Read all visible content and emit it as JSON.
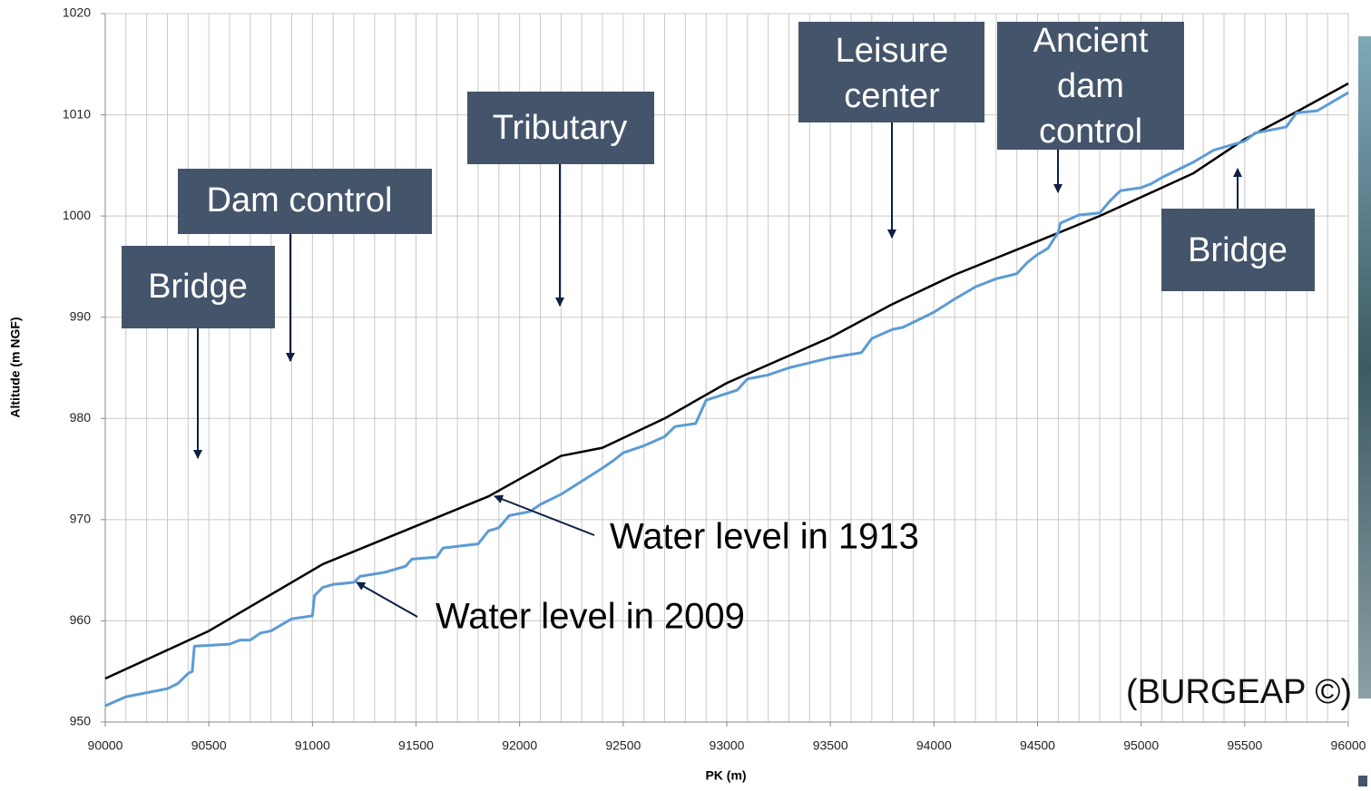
{
  "chart_data": {
    "type": "line",
    "xlabel": "PK (m)",
    "ylabel": "Altitude (m NGF)",
    "xlim": [
      90000,
      96000
    ],
    "ylim": [
      950,
      1020
    ],
    "xticks": [
      90000,
      90500,
      91000,
      91500,
      92000,
      92500,
      93000,
      93500,
      94000,
      94500,
      95000,
      95500,
      96000
    ],
    "yticks": [
      950,
      960,
      970,
      980,
      990,
      1000,
      1010,
      1020
    ],
    "grid": true,
    "series": [
      {
        "name": "Water level in 1913",
        "color": "#000000",
        "x": [
          90000,
          90500,
          91050,
          91850,
          92200,
          92400,
          92700,
          93000,
          93500,
          93800,
          94100,
          94500,
          94800,
          95250,
          95500,
          95750,
          96000
        ],
        "values": [
          954.3,
          959,
          965.6,
          972.3,
          976.3,
          977.1,
          980,
          983.5,
          988,
          991.3,
          994.2,
          997.5,
          1000,
          1004.2,
          1007.6,
          1010.3,
          1013.1
        ]
      },
      {
        "name": "Water level in 2009",
        "color": "#5b9bd5",
        "x": [
          90000,
          90100,
          90300,
          90350,
          90400,
          90420,
          90430,
          90600,
          90650,
          90700,
          90750,
          90800,
          90900,
          91000,
          91010,
          91050,
          91100,
          91200,
          91230,
          91350,
          91450,
          91480,
          91600,
          91630,
          91800,
          91850,
          91900,
          91950,
          92050,
          92100,
          92200,
          92300,
          92400,
          92450,
          92500,
          92600,
          92700,
          92750,
          92850,
          92900,
          93050,
          93100,
          93200,
          93300,
          93400,
          93500,
          93650,
          93700,
          93800,
          93850,
          94000,
          94100,
          94200,
          94300,
          94400,
          94450,
          94500,
          94550,
          94600,
          94610,
          94700,
          94800,
          94850,
          94900,
          95000,
          95050,
          95100,
          95250,
          95350,
          95500,
          95550,
          95700,
          95750,
          95850,
          96000
        ],
        "values": [
          951.6,
          952.5,
          953.3,
          953.8,
          954.8,
          955,
          957.5,
          957.7,
          958.1,
          958.1,
          958.8,
          959,
          960.2,
          960.5,
          962.5,
          963.3,
          963.6,
          963.8,
          964.4,
          964.8,
          965.4,
          966.1,
          966.3,
          967.2,
          967.6,
          968.9,
          969.2,
          970.4,
          970.8,
          971.5,
          972.5,
          973.8,
          975.1,
          975.8,
          976.6,
          977.3,
          978.2,
          979.2,
          979.5,
          981.8,
          982.8,
          983.9,
          984.3,
          985,
          985.5,
          986,
          986.5,
          987.9,
          988.8,
          989,
          990.5,
          991.8,
          993,
          993.8,
          994.3,
          995.4,
          996.2,
          996.8,
          998.4,
          999.3,
          1000.1,
          1000.3,
          1001.5,
          1002.5,
          1002.8,
          1003.2,
          1003.8,
          1005.3,
          1006.5,
          1007.4,
          1008.2,
          1008.8,
          1010.2,
          1010.4,
          1012.2
        ]
      }
    ],
    "annotations": [
      {
        "lines": [
          "Bridge"
        ]
      },
      {
        "lines": [
          "Dam control"
        ]
      },
      {
        "lines": [
          "Tributary"
        ]
      },
      {
        "lines": [
          "Leisure",
          "center"
        ]
      },
      {
        "lines": [
          "Ancient",
          "dam",
          "control"
        ]
      },
      {
        "lines": [
          "Bridge"
        ]
      }
    ],
    "credit": "(BURGEAP ©)"
  }
}
